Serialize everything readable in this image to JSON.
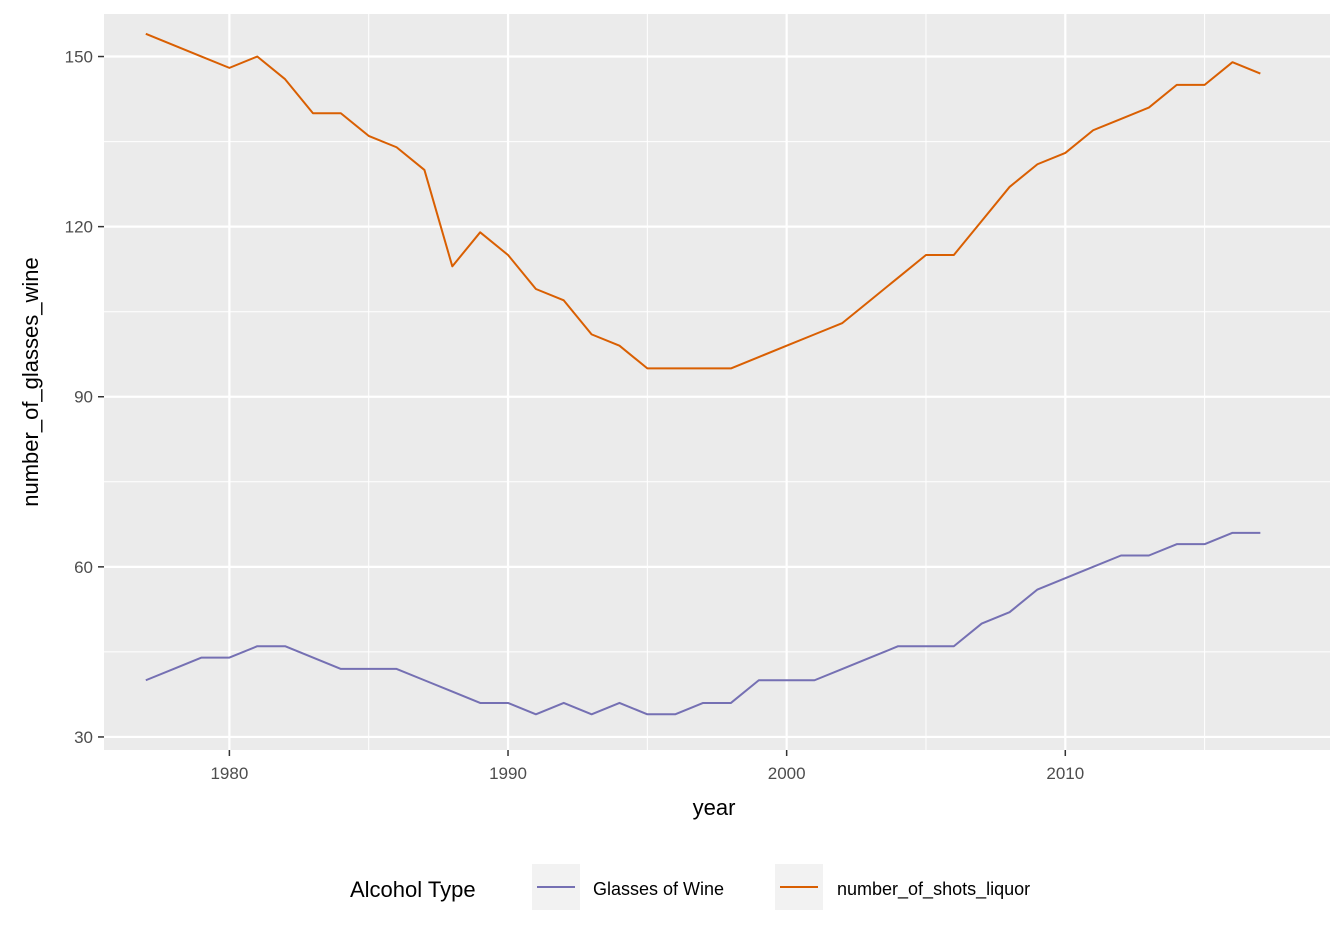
{
  "chart_data": {
    "type": "line",
    "title": "",
    "xlabel": "year",
    "ylabel": "number_of_glasses_wine",
    "xlim": [
      1975.5,
      2019.5
    ],
    "ylim": [
      27.7,
      157.5
    ],
    "x_ticks": [
      1980,
      1990,
      2000,
      2010
    ],
    "x_tick_labels": [
      "1980",
      "1990",
      "2000",
      "2010"
    ],
    "y_ticks": [
      30,
      60,
      90,
      120,
      150
    ],
    "y_tick_labels": [
      "30",
      "60",
      "90",
      "120",
      "150"
    ],
    "grid": true,
    "legend": {
      "title": "Alcohol Type",
      "position": "bottom"
    },
    "x": [
      1977,
      1978,
      1979,
      1980,
      1981,
      1982,
      1983,
      1984,
      1985,
      1986,
      1987,
      1988,
      1989,
      1990,
      1991,
      1992,
      1993,
      1994,
      1995,
      1996,
      1997,
      1998,
      1999,
      2000,
      2001,
      2002,
      2003,
      2004,
      2005,
      2006,
      2007,
      2008,
      2009,
      2010,
      2011,
      2012,
      2013,
      2014,
      2015,
      2016,
      2017
    ],
    "series": [
      {
        "name": "Glasses of Wine",
        "color": "#7570b3",
        "values": [
          40,
          42,
          44,
          44,
          46,
          46,
          44,
          42,
          42,
          42,
          40,
          38,
          36,
          36,
          34,
          36,
          34,
          36,
          34,
          34,
          36,
          36,
          40,
          40,
          40,
          42,
          44,
          46,
          46,
          46,
          50,
          52,
          56,
          58,
          60,
          62,
          62,
          64,
          64,
          66,
          66
        ]
      },
      {
        "name": "number_of_shots_liquor",
        "color": "#d95f02",
        "values": [
          154,
          152,
          150,
          148,
          150,
          146,
          140,
          140,
          136,
          134,
          130,
          113,
          119,
          115,
          109,
          107,
          101,
          99,
          95,
          95,
          95,
          95,
          97,
          99,
          101,
          103,
          107,
          111,
          115,
          115,
          121,
          127,
          131,
          133,
          137,
          139,
          141,
          145,
          145,
          149,
          147
        ]
      }
    ]
  }
}
